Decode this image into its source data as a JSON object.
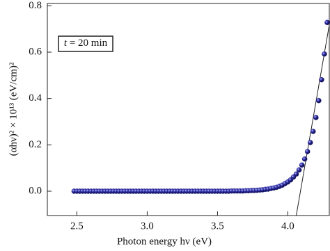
{
  "chart_data": {
    "type": "scatter",
    "xlabel": "Photon energy hν (eV)",
    "ylabel": "(αhν)² × 10¹³ (eV/cm)²",
    "annotation": {
      "var": "t",
      "text": " = 20 min"
    },
    "color": "#1f1f8c",
    "xlim": [
      2.29,
      4.3
    ],
    "ylim": [
      -0.105,
      0.81
    ],
    "xticks": [
      2.5,
      {
        "value": 3.0,
        "label": "3.0"
      },
      3.5,
      {
        "value": 4.0,
        "label": "4.0"
      }
    ],
    "yticks": [
      {
        "value": 0.0,
        "label": "0.0"
      },
      0.2,
      0.4,
      0.6,
      0.8
    ],
    "x": [
      2.48,
      2.5,
      2.52,
      2.54,
      2.56,
      2.58,
      2.6,
      2.62,
      2.64,
      2.66,
      2.68,
      2.7,
      2.72,
      2.74,
      2.76,
      2.78,
      2.8,
      2.82,
      2.84,
      2.86,
      2.88,
      2.9,
      2.92,
      2.94,
      2.96,
      2.98,
      3.0,
      3.02,
      3.04,
      3.06,
      3.08,
      3.1,
      3.12,
      3.14,
      3.16,
      3.18,
      3.2,
      3.22,
      3.24,
      3.26,
      3.28,
      3.3,
      3.32,
      3.34,
      3.36,
      3.38,
      3.4,
      3.42,
      3.44,
      3.46,
      3.48,
      3.5,
      3.52,
      3.54,
      3.56,
      3.58,
      3.6,
      3.62,
      3.64,
      3.66,
      3.68,
      3.7,
      3.72,
      3.74,
      3.76,
      3.78,
      3.8,
      3.82,
      3.84,
      3.86,
      3.88,
      3.9,
      3.92,
      3.94,
      3.96,
      3.98,
      4.0,
      4.02,
      4.04,
      4.06,
      4.08,
      4.1,
      4.12,
      4.14,
      4.16,
      4.18,
      4.2,
      4.22,
      4.24,
      4.26,
      4.28
    ],
    "values": [
      0,
      0,
      0,
      0,
      0,
      0,
      0,
      0,
      0,
      0,
      0,
      0,
      0,
      0,
      0,
      0,
      0,
      0,
      0,
      0,
      0,
      0,
      0,
      0,
      0,
      0,
      0,
      0,
      0,
      0,
      0,
      0,
      0,
      0,
      0,
      0,
      0,
      0,
      0,
      0,
      0,
      0,
      0,
      0,
      0,
      0,
      0,
      0,
      0,
      0,
      0,
      0,
      0,
      0,
      0,
      0,
      0.001,
      0.001,
      0.001,
      0.001,
      0.001,
      0.002,
      0.002,
      0.003,
      0.003,
      0.004,
      0.005,
      0.006,
      0.008,
      0.009,
      0.012,
      0.014,
      0.017,
      0.021,
      0.026,
      0.033,
      0.04,
      0.049,
      0.061,
      0.074,
      0.092,
      0.113,
      0.139,
      0.171,
      0.21,
      0.258,
      0.318,
      0.391,
      0.481,
      0.592,
      0.728
    ],
    "fit_line": {
      "x": [
        4.06,
        4.3
      ],
      "y": [
        -0.105,
        0.735
      ]
    }
  }
}
